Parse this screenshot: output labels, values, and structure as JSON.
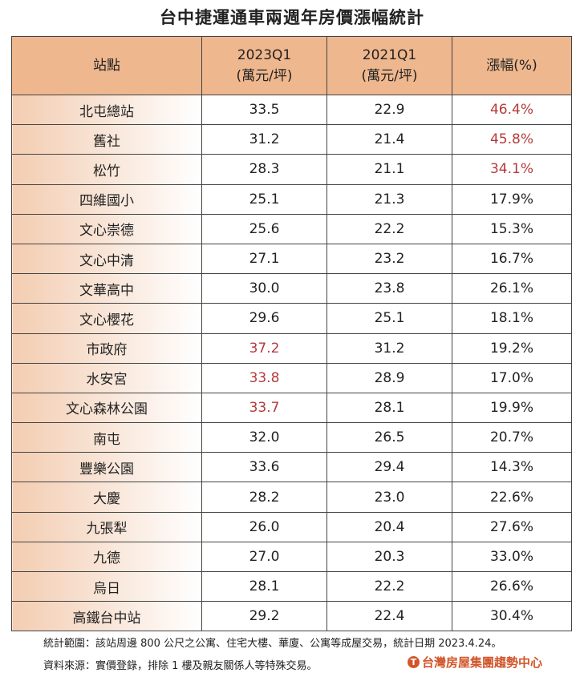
{
  "title": "台中捷運通車兩週年房價漲幅統計",
  "table": {
    "headers": [
      {
        "line1": "站點",
        "line2": ""
      },
      {
        "line1": "2023Q1",
        "line2": "(萬元/坪)"
      },
      {
        "line1": "2021Q1",
        "line2": "(萬元/坪)"
      },
      {
        "line1": "漲幅(%)",
        "line2": ""
      }
    ],
    "highlight_color": "#b53a3a",
    "rows": [
      {
        "station": "北屯總站",
        "q2023": "33.5",
        "q2021": "22.9",
        "change": "46.4%",
        "hl2023": false,
        "hlchange": true
      },
      {
        "station": "舊社",
        "q2023": "31.2",
        "q2021": "21.4",
        "change": "45.8%",
        "hl2023": false,
        "hlchange": true
      },
      {
        "station": "松竹",
        "q2023": "28.3",
        "q2021": "21.1",
        "change": "34.1%",
        "hl2023": false,
        "hlchange": true
      },
      {
        "station": "四維國小",
        "q2023": "25.1",
        "q2021": "21.3",
        "change": "17.9%",
        "hl2023": false,
        "hlchange": false
      },
      {
        "station": "文心崇德",
        "q2023": "25.6",
        "q2021": "22.2",
        "change": "15.3%",
        "hl2023": false,
        "hlchange": false
      },
      {
        "station": "文心中清",
        "q2023": "27.1",
        "q2021": "23.2",
        "change": "16.7%",
        "hl2023": false,
        "hlchange": false
      },
      {
        "station": "文華高中",
        "q2023": "30.0",
        "q2021": "23.8",
        "change": "26.1%",
        "hl2023": false,
        "hlchange": false
      },
      {
        "station": "文心櫻花",
        "q2023": "29.6",
        "q2021": "25.1",
        "change": "18.1%",
        "hl2023": false,
        "hlchange": false
      },
      {
        "station": "市政府",
        "q2023": "37.2",
        "q2021": "31.2",
        "change": "19.2%",
        "hl2023": true,
        "hlchange": false
      },
      {
        "station": "水安宮",
        "q2023": "33.8",
        "q2021": "28.9",
        "change": "17.0%",
        "hl2023": true,
        "hlchange": false
      },
      {
        "station": "文心森林公園",
        "q2023": "33.7",
        "q2021": "28.1",
        "change": "19.9%",
        "hl2023": true,
        "hlchange": false
      },
      {
        "station": "南屯",
        "q2023": "32.0",
        "q2021": "26.5",
        "change": "20.7%",
        "hl2023": false,
        "hlchange": false
      },
      {
        "station": "豐樂公園",
        "q2023": "33.6",
        "q2021": "29.4",
        "change": "14.3%",
        "hl2023": false,
        "hlchange": false
      },
      {
        "station": "大慶",
        "q2023": "28.2",
        "q2021": "23.0",
        "change": "22.6%",
        "hl2023": false,
        "hlchange": false
      },
      {
        "station": "九張犁",
        "q2023": "26.0",
        "q2021": "20.4",
        "change": "27.6%",
        "hl2023": false,
        "hlchange": false
      },
      {
        "station": "九德",
        "q2023": "27.0",
        "q2021": "20.3",
        "change": "33.0%",
        "hl2023": false,
        "hlchange": false
      },
      {
        "station": "烏日",
        "q2023": "28.1",
        "q2021": "22.2",
        "change": "26.6%",
        "hl2023": false,
        "hlchange": false
      },
      {
        "station": "高鐵台中站",
        "q2023": "29.2",
        "q2021": "22.4",
        "change": "30.4%",
        "hl2023": false,
        "hlchange": false
      }
    ]
  },
  "footer": {
    "scope": "統計範圍：該站周邊 800 公尺之公寓、住宅大樓、華廈、公寓等成屋交易，統計日期 2023.4.24。",
    "source": "資料來源：實價登錄，排除 1 樓及親友關係人等特殊交易。",
    "logo_text": "台灣房屋集團趨勢中心",
    "logo_mark": "T"
  }
}
